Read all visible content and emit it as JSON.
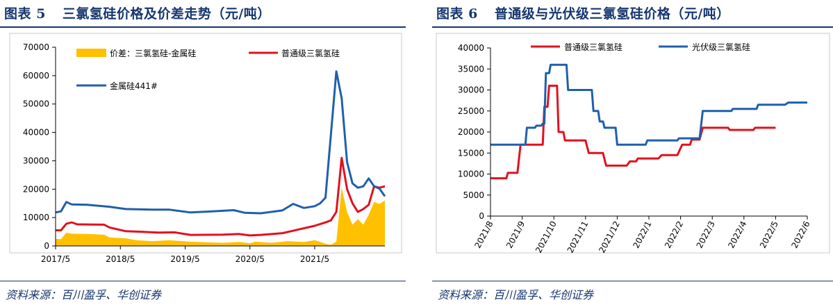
{
  "figure_left": {
    "label": "图表 5",
    "title": "三氯氢硅价格及价差走势（元/吨）",
    "source": "资料来源：百川盈孚、华创证券"
  },
  "figure_right": {
    "label": "图表 6",
    "title": "普通级与光伏级三氯氢硅价格（元/吨）",
    "source": "资料来源：百川盈孚、华创证券"
  },
  "colors": {
    "navy": "#16366f",
    "red": "#e3101e",
    "blue": "#1f5fad",
    "gold": "#ffc000"
  },
  "chart_data": [
    {
      "type": "line",
      "ylim": [
        0,
        70000
      ],
      "yticks": [
        "0",
        "10000",
        "20000",
        "30000",
        "40000",
        "50000",
        "60000",
        "70000"
      ],
      "xticks": [
        "2017/5",
        "2018/5",
        "2019/5",
        "2020/5",
        "2021/5"
      ],
      "x_range": [
        "2017/5",
        "2022/6"
      ],
      "grid": false,
      "legend": "top",
      "series": [
        {
          "name": "价差：三氯氢硅-金属硅",
          "kind": "area",
          "color": "#ffc000",
          "points": [
            [
              "2017/5",
              2500
            ],
            [
              "2017/6",
              2400
            ],
            [
              "2017/7",
              4700
            ],
            [
              "2017/8",
              4300
            ],
            [
              "2017/11",
              4200
            ],
            [
              "2018/2",
              4000
            ],
            [
              "2018/3",
              3000
            ],
            [
              "2018/6",
              2700
            ],
            [
              "2018/8",
              2000
            ],
            [
              "2018/11",
              1700
            ],
            [
              "2019/2",
              2000
            ],
            [
              "2019/6",
              1500
            ],
            [
              "2019/9",
              1300
            ],
            [
              "2019/12",
              1100
            ],
            [
              "2020/3",
              1400
            ],
            [
              "2020/5",
              900
            ],
            [
              "2020/6",
              1500
            ],
            [
              "2020/9",
              1100
            ],
            [
              "2020/12",
              1700
            ],
            [
              "2021/3",
              1400
            ],
            [
              "2021/5",
              2000
            ],
            [
              "2021/7",
              800
            ],
            [
              "2021/8",
              400
            ],
            [
              "2021/9",
              1500
            ],
            [
              "2021/10",
              20500
            ],
            [
              "2021/11",
              12000
            ],
            [
              "2021/12",
              7500
            ],
            [
              "2022/1",
              9500
            ],
            [
              "2022/2",
              7500
            ],
            [
              "2022/3",
              11000
            ],
            [
              "2022/4",
              15500
            ],
            [
              "2022/5",
              14800
            ],
            [
              "2022/6",
              16000
            ]
          ]
        },
        {
          "name": "普通级三氯氢硅",
          "kind": "line",
          "color": "#e3101e",
          "points": [
            [
              "2017/5",
              5500
            ],
            [
              "2017/6",
              5500
            ],
            [
              "2017/7",
              7800
            ],
            [
              "2017/8",
              8300
            ],
            [
              "2017/9",
              7600
            ],
            [
              "2018/2",
              7500
            ],
            [
              "2018/3",
              6500
            ],
            [
              "2018/6",
              5200
            ],
            [
              "2018/9",
              5000
            ],
            [
              "2018/12",
              4700
            ],
            [
              "2019/3",
              4800
            ],
            [
              "2019/6",
              3900
            ],
            [
              "2019/12",
              4000
            ],
            [
              "2020/3",
              4200
            ],
            [
              "2020/5",
              3700
            ],
            [
              "2020/7",
              3900
            ],
            [
              "2020/11",
              4500
            ],
            [
              "2021/2",
              5800
            ],
            [
              "2021/5",
              7100
            ],
            [
              "2021/7",
              8300
            ],
            [
              "2021/8",
              9000
            ],
            [
              "2021/9",
              12000
            ],
            [
              "2021/10",
              31000
            ],
            [
              "2021/11",
              20000
            ],
            [
              "2021/12",
              15000
            ],
            [
              "2022/1",
              12000
            ],
            [
              "2022/2",
              13000
            ],
            [
              "2022/3",
              14500
            ],
            [
              "2022/4",
              21000
            ],
            [
              "2022/5",
              20500
            ],
            [
              "2022/6",
              21000
            ]
          ]
        },
        {
          "name": "金属硅441#",
          "kind": "line",
          "color": "#1f5fad",
          "points": [
            [
              "2017/5",
              11800
            ],
            [
              "2017/6",
              12200
            ],
            [
              "2017/7",
              15500
            ],
            [
              "2017/8",
              14600
            ],
            [
              "2017/11",
              14500
            ],
            [
              "2018/3",
              13800
            ],
            [
              "2018/6",
              13000
            ],
            [
              "2018/11",
              12800
            ],
            [
              "2019/2",
              12800
            ],
            [
              "2019/6",
              11800
            ],
            [
              "2019/10",
              12200
            ],
            [
              "2020/2",
              12600
            ],
            [
              "2020/4",
              11700
            ],
            [
              "2020/7",
              11500
            ],
            [
              "2020/11",
              12500
            ],
            [
              "2021/1",
              14800
            ],
            [
              "2021/3",
              13400
            ],
            [
              "2021/5",
              14000
            ],
            [
              "2021/6",
              15000
            ],
            [
              "2021/7",
              17000
            ],
            [
              "2021/9",
              61500
            ],
            [
              "2021/10",
              52000
            ],
            [
              "2021/11",
              29500
            ],
            [
              "2021/12",
              22000
            ],
            [
              "2022/1",
              20500
            ],
            [
              "2022/2",
              21000
            ],
            [
              "2022/3",
              23800
            ],
            [
              "2022/4",
              21000
            ],
            [
              "2022/5",
              20200
            ],
            [
              "2022/6",
              17500
            ]
          ]
        }
      ]
    },
    {
      "type": "line",
      "ylim": [
        0,
        40000
      ],
      "yticks": [
        "0",
        "5000",
        "10000",
        "15000",
        "20000",
        "25000",
        "30000",
        "35000",
        "40000"
      ],
      "xticks": [
        "2021/8",
        "2021/9",
        "2021/10",
        "2021/11",
        "2021/12",
        "2022/1",
        "2022/2",
        "2022/3",
        "2022/4",
        "2022/5",
        "2022/6"
      ],
      "x_range": [
        "2021/8",
        "2022/6"
      ],
      "grid": false,
      "legend": "top",
      "series": [
        {
          "name": "普通级三氯氢硅",
          "color": "#e3101e",
          "points": [
            [
              0.0,
              9000
            ],
            [
              0.5,
              9000
            ],
            [
              0.55,
              10300
            ],
            [
              0.85,
              10300
            ],
            [
              0.95,
              17000
            ],
            [
              1.65,
              17000
            ],
            [
              1.7,
              26000
            ],
            [
              1.8,
              26000
            ],
            [
              1.85,
              31000
            ],
            [
              2.1,
              31000
            ],
            [
              2.15,
              20000
            ],
            [
              2.3,
              20000
            ],
            [
              2.35,
              18000
            ],
            [
              3.0,
              18000
            ],
            [
              3.1,
              15000
            ],
            [
              3.55,
              15000
            ],
            [
              3.65,
              12000
            ],
            [
              4.3,
              12000
            ],
            [
              4.4,
              13000
            ],
            [
              4.6,
              13000
            ],
            [
              4.65,
              13700
            ],
            [
              5.3,
              13700
            ],
            [
              5.4,
              14500
            ],
            [
              5.9,
              14500
            ],
            [
              6.05,
              17000
            ],
            [
              6.3,
              17000
            ],
            [
              6.35,
              18200
            ],
            [
              6.6,
              18200
            ],
            [
              6.7,
              21000
            ],
            [
              7.5,
              21000
            ],
            [
              7.55,
              20500
            ],
            [
              8.3,
              20500
            ],
            [
              8.35,
              21000
            ],
            [
              9.0,
              21000
            ]
          ]
        },
        {
          "name": "光伏级三氯氢硅",
          "color": "#1f5fad",
          "points": [
            [
              0.0,
              17000
            ],
            [
              1.1,
              17000
            ],
            [
              1.15,
              21000
            ],
            [
              1.4,
              21000
            ],
            [
              1.45,
              21500
            ],
            [
              1.6,
              21500
            ],
            [
              1.65,
              22000
            ],
            [
              1.7,
              22000
            ],
            [
              1.75,
              34000
            ],
            [
              1.85,
              34000
            ],
            [
              1.9,
              36000
            ],
            [
              2.4,
              36000
            ],
            [
              2.45,
              30000
            ],
            [
              3.2,
              30000
            ],
            [
              3.25,
              25000
            ],
            [
              3.4,
              25000
            ],
            [
              3.45,
              22500
            ],
            [
              3.55,
              22500
            ],
            [
              3.6,
              21000
            ],
            [
              3.95,
              21000
            ],
            [
              4.0,
              17000
            ],
            [
              4.9,
              17000
            ],
            [
              4.95,
              18000
            ],
            [
              5.9,
              18000
            ],
            [
              5.95,
              18500
            ],
            [
              6.6,
              18500
            ],
            [
              6.7,
              25000
            ],
            [
              7.6,
              25000
            ],
            [
              7.65,
              25500
            ],
            [
              8.4,
              25500
            ],
            [
              8.45,
              26500
            ],
            [
              9.3,
              26500
            ],
            [
              9.4,
              27000
            ],
            [
              10.0,
              27000
            ]
          ]
        }
      ]
    }
  ]
}
